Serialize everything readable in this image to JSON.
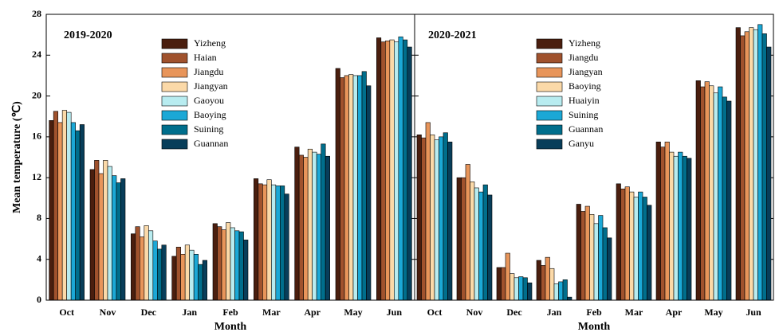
{
  "chart_data": [
    {
      "type": "bar",
      "title": "2019-2020",
      "ylabel": "Mean temperature (℃)",
      "xlabel": "Month",
      "categories": [
        "Oct",
        "Nov",
        "Dec",
        "Jan",
        "Feb",
        "Mar",
        "Apr",
        "May",
        "Jun"
      ],
      "ylim": [
        0,
        28
      ],
      "yticks": [
        0,
        4,
        8,
        12,
        16,
        20,
        24,
        28
      ],
      "series": [
        {
          "name": "Yizheng",
          "color": "#4a1e0e",
          "values": [
            17.6,
            12.8,
            6.5,
            4.3,
            7.5,
            11.9,
            15.0,
            22.7,
            25.7
          ]
        },
        {
          "name": "Haian",
          "color": "#a0522d",
          "values": [
            18.5,
            13.7,
            7.2,
            5.2,
            7.2,
            11.4,
            14.2,
            21.8,
            25.3
          ]
        },
        {
          "name": "Jiangdu",
          "color": "#e8955a",
          "values": [
            17.4,
            12.4,
            6.2,
            4.5,
            6.9,
            11.3,
            14.0,
            22.0,
            25.4
          ]
        },
        {
          "name": "Jiangyan",
          "color": "#fbd9a8",
          "values": [
            18.6,
            13.7,
            7.3,
            5.4,
            7.6,
            11.8,
            14.8,
            22.1,
            25.5
          ]
        },
        {
          "name": "Gaoyou",
          "color": "#b8ecf0",
          "values": [
            18.4,
            13.1,
            6.8,
            4.9,
            7.1,
            11.3,
            14.5,
            22.0,
            25.3
          ]
        },
        {
          "name": "Baoying",
          "color": "#1ba8d6",
          "values": [
            17.4,
            12.2,
            5.8,
            4.5,
            6.8,
            11.2,
            14.3,
            22.0,
            25.8
          ]
        },
        {
          "name": "Suining",
          "color": "#006e8c",
          "values": [
            16.6,
            11.5,
            5.0,
            3.5,
            6.7,
            11.2,
            15.3,
            22.4,
            25.5
          ]
        },
        {
          "name": "Guannan",
          "color": "#083e5a",
          "values": [
            17.2,
            11.9,
            5.4,
            3.9,
            5.9,
            10.4,
            14.1,
            21.0,
            24.8
          ]
        }
      ]
    },
    {
      "type": "bar",
      "title": "2020-2021",
      "xlabel": "Month",
      "categories": [
        "Oct",
        "Nov",
        "Dec",
        "Jan",
        "Feb",
        "Mar",
        "Apr",
        "May",
        "Jun"
      ],
      "ylim": [
        0,
        28
      ],
      "yticks": [
        0,
        4,
        8,
        12,
        16,
        20,
        24,
        28
      ],
      "series": [
        {
          "name": "Yizheng",
          "color": "#4a1e0e",
          "values": [
            16.2,
            12.0,
            3.2,
            3.9,
            9.4,
            11.4,
            15.5,
            21.5,
            26.7
          ]
        },
        {
          "name": "Jiangdu",
          "color": "#a0522d",
          "values": [
            15.9,
            12.0,
            3.2,
            3.4,
            8.7,
            10.9,
            15.0,
            20.9,
            25.9
          ]
        },
        {
          "name": "Jiangyan",
          "color": "#e8955a",
          "values": [
            17.4,
            13.3,
            4.6,
            4.2,
            9.2,
            11.1,
            15.5,
            21.4,
            26.3
          ]
        },
        {
          "name": "Baoying",
          "color": "#fbd9a8",
          "values": [
            16.2,
            11.6,
            2.6,
            3.1,
            8.4,
            10.6,
            14.5,
            21.0,
            26.7
          ]
        },
        {
          "name": "Huaiyin",
          "color": "#b8ecf0",
          "values": [
            15.7,
            11.0,
            2.2,
            1.6,
            7.5,
            10.1,
            14.1,
            20.3,
            26.5
          ]
        },
        {
          "name": "Suining",
          "color": "#1ba8d6",
          "values": [
            16.0,
            10.6,
            2.3,
            1.8,
            8.3,
            10.6,
            14.5,
            20.9,
            27.0
          ]
        },
        {
          "name": "Guannan",
          "color": "#006e8c",
          "values": [
            16.4,
            11.3,
            2.2,
            2.0,
            7.1,
            10.1,
            14.1,
            19.9,
            26.1
          ]
        },
        {
          "name": "Ganyu",
          "color": "#083e5a",
          "values": [
            15.5,
            10.3,
            1.7,
            0.3,
            6.1,
            9.3,
            13.9,
            19.5,
            24.8
          ]
        }
      ]
    }
  ]
}
